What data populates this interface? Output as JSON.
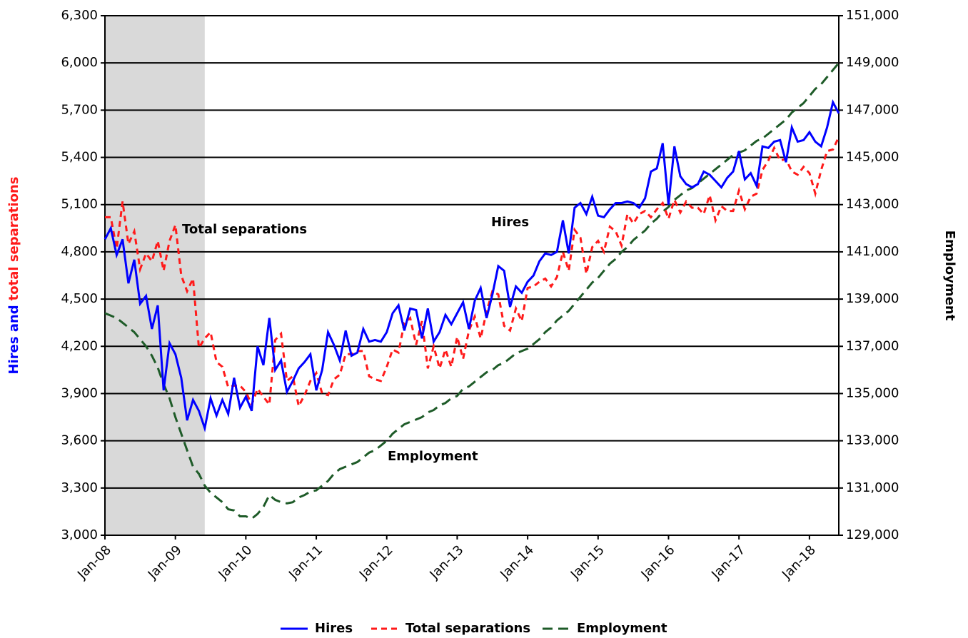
{
  "chart_data": {
    "type": "line",
    "annotations": [
      {
        "text": "Total separations",
        "color": "#ff1a1a"
      },
      {
        "text": "Hires",
        "color": "#0000ff"
      },
      {
        "text": "Employment",
        "color": "#1e5b28"
      }
    ],
    "ylabel_parts": [
      {
        "text": "Hires and",
        "color": "#0000ff"
      },
      {
        "text": "total separations",
        "color": "#ff1a1a"
      }
    ],
    "y2label": {
      "text": "Employment",
      "color": "#1e5b28"
    },
    "shaded_range": [
      "2008-01",
      "2009-06"
    ],
    "grid": true,
    "legend": "bottom",
    "xlim": [
      "2008-01",
      "2018-06"
    ],
    "xticks": [
      {
        "value": "2008-01",
        "label": "Jan-08"
      },
      {
        "value": "2009-01",
        "label": "Jan-09"
      },
      {
        "value": "2010-01",
        "label": "Jan-10"
      },
      {
        "value": "2011-01",
        "label": "Jan-11"
      },
      {
        "value": "2012-01",
        "label": "Jan-12"
      },
      {
        "value": "2013-01",
        "label": "Jan-13"
      },
      {
        "value": "2014-01",
        "label": "Jan-14"
      },
      {
        "value": "2015-01",
        "label": "Jan-15"
      },
      {
        "value": "2016-01",
        "label": "Jan-16"
      },
      {
        "value": "2017-01",
        "label": "Jan-17"
      },
      {
        "value": "2018-01",
        "label": "Jan-18"
      }
    ],
    "ylim": [
      3000,
      6300
    ],
    "yticks": [
      {
        "value": 3000,
        "label": "3,000"
      },
      {
        "value": 3300,
        "label": "3,300"
      },
      {
        "value": 3600,
        "label": "3,600"
      },
      {
        "value": 3900,
        "label": "3,900"
      },
      {
        "value": 4200,
        "label": "4,200"
      },
      {
        "value": 4500,
        "label": "4,500"
      },
      {
        "value": 4800,
        "label": "4,800"
      },
      {
        "value": 5100,
        "label": "5,100"
      },
      {
        "value": 5400,
        "label": "5,400"
      },
      {
        "value": 5700,
        "label": "5,700"
      },
      {
        "value": 6000,
        "label": "6,000"
      },
      {
        "value": 6300,
        "label": "6,300"
      }
    ],
    "y2lim": [
      129000,
      151000
    ],
    "y2ticks": [
      {
        "value": 129000,
        "label": "129,000"
      },
      {
        "value": 131000,
        "label": "131,000"
      },
      {
        "value": 133000,
        "label": "133,000"
      },
      {
        "value": 135000,
        "label": "135,000"
      },
      {
        "value": 137000,
        "label": "137,000"
      },
      {
        "value": 139000,
        "label": "139,000"
      },
      {
        "value": 141000,
        "label": "141,000"
      },
      {
        "value": 143000,
        "label": "143,000"
      },
      {
        "value": 145000,
        "label": "145,000"
      },
      {
        "value": 147000,
        "label": "147,000"
      },
      {
        "value": 149000,
        "label": "149,000"
      },
      {
        "value": 151000,
        "label": "151,000"
      }
    ],
    "x": [
      "2008-01",
      "2008-02",
      "2008-03",
      "2008-04",
      "2008-05",
      "2008-06",
      "2008-07",
      "2008-08",
      "2008-09",
      "2008-10",
      "2008-11",
      "2008-12",
      "2009-01",
      "2009-02",
      "2009-03",
      "2009-04",
      "2009-05",
      "2009-06",
      "2009-07",
      "2009-08",
      "2009-09",
      "2009-10",
      "2009-11",
      "2009-12",
      "2010-01",
      "2010-02",
      "2010-03",
      "2010-04",
      "2010-05",
      "2010-06",
      "2010-07",
      "2010-08",
      "2010-09",
      "2010-10",
      "2010-11",
      "2010-12",
      "2011-01",
      "2011-02",
      "2011-03",
      "2011-04",
      "2011-05",
      "2011-06",
      "2011-07",
      "2011-08",
      "2011-09",
      "2011-10",
      "2011-11",
      "2011-12",
      "2012-01",
      "2012-02",
      "2012-03",
      "2012-04",
      "2012-05",
      "2012-06",
      "2012-07",
      "2012-08",
      "2012-09",
      "2012-10",
      "2012-11",
      "2012-12",
      "2013-01",
      "2013-02",
      "2013-03",
      "2013-04",
      "2013-05",
      "2013-06",
      "2013-07",
      "2013-08",
      "2013-09",
      "2013-10",
      "2013-11",
      "2013-12",
      "2014-01",
      "2014-02",
      "2014-03",
      "2014-04",
      "2014-05",
      "2014-06",
      "2014-07",
      "2014-08",
      "2014-09",
      "2014-10",
      "2014-11",
      "2014-12",
      "2015-01",
      "2015-02",
      "2015-03",
      "2015-04",
      "2015-05",
      "2015-06",
      "2015-07",
      "2015-08",
      "2015-09",
      "2015-10",
      "2015-11",
      "2015-12",
      "2016-01",
      "2016-02",
      "2016-03",
      "2016-04",
      "2016-05",
      "2016-06",
      "2016-07",
      "2016-08",
      "2016-09",
      "2016-10",
      "2016-11",
      "2016-12",
      "2017-01",
      "2017-02",
      "2017-03",
      "2017-04",
      "2017-05",
      "2017-06",
      "2017-07",
      "2017-08",
      "2017-09",
      "2017-10",
      "2017-11",
      "2017-12",
      "2018-01",
      "2018-02",
      "2018-03",
      "2018-04",
      "2018-05",
      "2018-06"
    ],
    "series": [
      {
        "name": "Hires",
        "color": "#0000ff",
        "dash": "solid",
        "axis": "y",
        "values": [
          4880,
          4950,
          4780,
          4880,
          4600,
          4750,
          4470,
          4520,
          4310,
          4460,
          3920,
          4220,
          4150,
          4000,
          3730,
          3860,
          3790,
          3680,
          3870,
          3760,
          3860,
          3770,
          4000,
          3810,
          3880,
          3790,
          4200,
          4080,
          4380,
          4050,
          4110,
          3910,
          3980,
          4060,
          4100,
          4150,
          3920,
          4050,
          4290,
          4210,
          4110,
          4300,
          4140,
          4160,
          4310,
          4230,
          4240,
          4230,
          4290,
          4410,
          4460,
          4300,
          4440,
          4430,
          4250,
          4440,
          4230,
          4290,
          4400,
          4340,
          4410,
          4480,
          4310,
          4490,
          4570,
          4380,
          4530,
          4710,
          4680,
          4450,
          4580,
          4540,
          4610,
          4650,
          4740,
          4790,
          4780,
          4800,
          5000,
          4790,
          5080,
          5110,
          5040,
          5150,
          5030,
          5020,
          5070,
          5110,
          5110,
          5120,
          5110,
          5080,
          5140,
          5310,
          5330,
          5490,
          5100,
          5470,
          5280,
          5230,
          5210,
          5230,
          5310,
          5290,
          5250,
          5210,
          5270,
          5310,
          5440,
          5260,
          5300,
          5220,
          5470,
          5460,
          5500,
          5510,
          5370,
          5590,
          5500,
          5510,
          5560,
          5500,
          5470,
          5590,
          5750,
          5680
        ]
      },
      {
        "name": "Total separations",
        "color": "#ff1a1a",
        "dash": "dashed",
        "axis": "y",
        "values": [
          5020,
          5020,
          4820,
          5120,
          4850,
          4930,
          4690,
          4790,
          4740,
          4870,
          4680,
          4870,
          4970,
          4650,
          4550,
          4630,
          4190,
          4250,
          4290,
          4100,
          4070,
          3940,
          3950,
          3950,
          3910,
          3830,
          3930,
          3880,
          3830,
          4240,
          4280,
          3980,
          4010,
          3820,
          3890,
          3980,
          4030,
          3900,
          3890,
          3990,
          4020,
          4150,
          4150,
          4170,
          4170,
          4010,
          3990,
          3980,
          4070,
          4180,
          4160,
          4350,
          4380,
          4210,
          4360,
          4060,
          4200,
          4060,
          4180,
          4070,
          4260,
          4120,
          4300,
          4390,
          4250,
          4420,
          4550,
          4530,
          4330,
          4300,
          4440,
          4360,
          4570,
          4580,
          4610,
          4630,
          4580,
          4640,
          4800,
          4680,
          4940,
          4890,
          4660,
          4830,
          4870,
          4800,
          4960,
          4930,
          4840,
          5040,
          4980,
          5040,
          5060,
          5020,
          5070,
          5110,
          5010,
          5130,
          5050,
          5120,
          5080,
          5080,
          5040,
          5160,
          5000,
          5090,
          5060,
          5060,
          5190,
          5070,
          5150,
          5170,
          5320,
          5380,
          5460,
          5380,
          5390,
          5310,
          5290,
          5340,
          5300,
          5170,
          5320,
          5440,
          5450,
          5530
        ]
      },
      {
        "name": "Employment",
        "color": "#1e5b28",
        "dash": "longdash",
        "axis": "y2",
        "values": [
          138400,
          138300,
          138200,
          138000,
          137800,
          137600,
          137300,
          137000,
          136600,
          136100,
          135400,
          134800,
          134000,
          133300,
          132600,
          131900,
          131600,
          131100,
          130800,
          130600,
          130400,
          130100,
          130050,
          129800,
          129800,
          129700,
          129900,
          130200,
          130700,
          130500,
          130400,
          130350,
          130400,
          130600,
          130700,
          130850,
          130900,
          131100,
          131300,
          131600,
          131800,
          131900,
          132000,
          132100,
          132300,
          132500,
          132600,
          132800,
          133000,
          133300,
          133500,
          133700,
          133800,
          133900,
          134000,
          134200,
          134300,
          134500,
          134600,
          134800,
          134900,
          135200,
          135300,
          135500,
          135700,
          135900,
          136000,
          136200,
          136300,
          136500,
          136700,
          136800,
          136900,
          137100,
          137300,
          137600,
          137800,
          138100,
          138300,
          138500,
          138800,
          139100,
          139400,
          139700,
          139900,
          140200,
          140500,
          140700,
          141000,
          141200,
          141500,
          141700,
          141900,
          142200,
          142400,
          142700,
          142900,
          143200,
          143400,
          143600,
          143700,
          143900,
          144100,
          144300,
          144500,
          144700,
          144900,
          145100,
          145200,
          145300,
          145500,
          145700,
          145800,
          146000,
          146200,
          146400,
          146600,
          146900,
          147100,
          147300,
          147600,
          147900,
          148100,
          148400,
          148700,
          149000
        ]
      }
    ]
  }
}
